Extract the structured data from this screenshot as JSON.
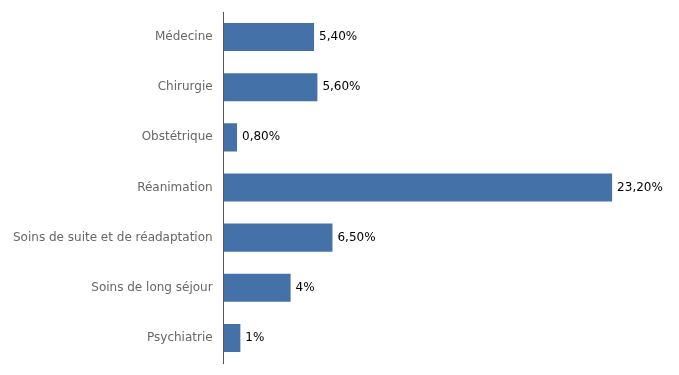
{
  "chart_data": {
    "type": "bar",
    "orientation": "horizontal",
    "categories": [
      "Psychiatrie",
      "Soins de long séjour",
      "Soins de suite et de réadaptation",
      "Réanimation",
      "Obstétrique",
      "Chirurgie",
      "Médecine"
    ],
    "values": [
      1.0,
      4.0,
      6.5,
      23.2,
      0.8,
      5.6,
      5.4
    ],
    "value_labels": [
      "1%",
      "4%",
      "6,50%",
      "23,20%",
      "0,80%",
      "5,60%",
      "5,40%"
    ],
    "data_labels": true,
    "color": "#4472a8",
    "xlim": [
      0,
      26
    ],
    "grid": false,
    "tick_labels": "y"
  }
}
